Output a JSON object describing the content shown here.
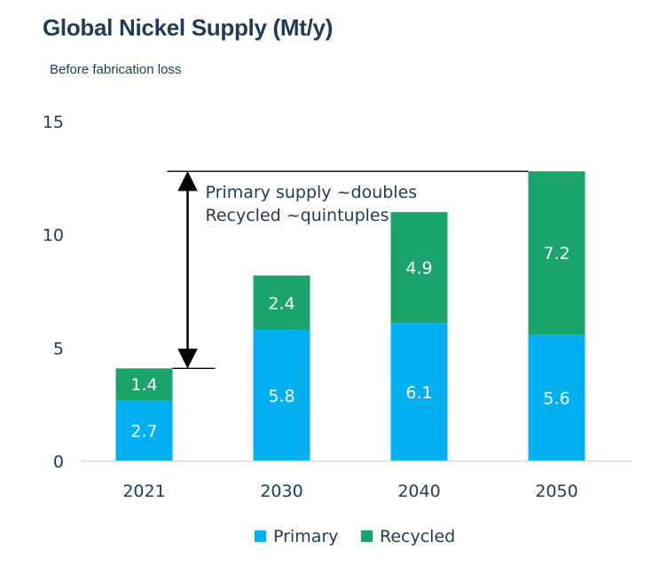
{
  "chart_data": {
    "type": "bar",
    "stacked": true,
    "title": "Global Nickel Supply (Mt/y)",
    "subtitle": "Before fabrication loss",
    "categories": [
      "2021",
      "2030",
      "2040",
      "2050"
    ],
    "series": [
      {
        "name": "Primary",
        "values": [
          2.7,
          5.8,
          6.1,
          5.6
        ],
        "color": "#00b0f0"
      },
      {
        "name": "Recycled",
        "values": [
          1.4,
          2.4,
          4.9,
          7.2
        ],
        "color": "#1aa36b"
      }
    ],
    "ylim": [
      0,
      15
    ],
    "yticks": [
      0,
      5,
      10,
      15
    ],
    "grid": false,
    "legend": "bottom",
    "annotation": {
      "lines": [
        "Primary supply ~doubles",
        "Recycled ~quintuples"
      ],
      "from_category": "2021",
      "to_category": "2050"
    }
  }
}
